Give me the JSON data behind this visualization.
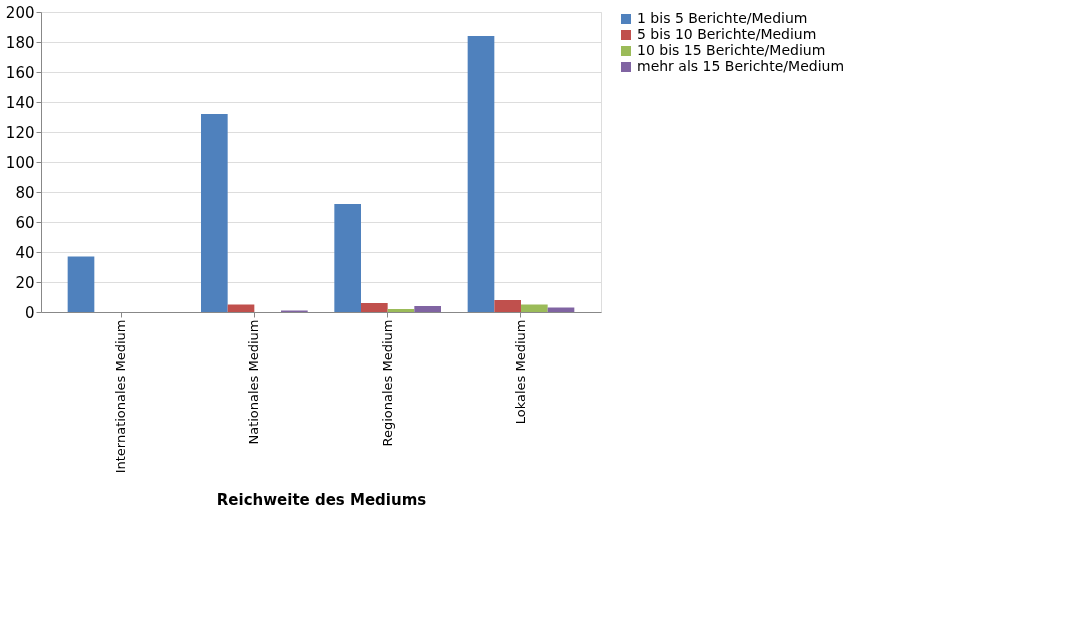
{
  "chart_data": {
    "type": "bar",
    "xlabel": "Reichweite des Mediums",
    "categories": [
      "Internationales Medium",
      "Nationales Medium",
      "Regionales Medium",
      "Lokales Medium"
    ],
    "series": [
      {
        "name": "1 bis 5 Berichte/Medium",
        "color": "#4f81bd",
        "values": [
          37,
          132,
          72,
          184
        ]
      },
      {
        "name": "5 bis 10 Berichte/Medium",
        "color": "#c0504d",
        "values": [
          0,
          5,
          6,
          8
        ]
      },
      {
        "name": "10 bis 15 Berichte/Medium",
        "color": "#9bbb59",
        "values": [
          0,
          0,
          2,
          5
        ]
      },
      {
        "name": "mehr als 15 Berichte/Medium",
        "color": "#8064a2",
        "values": [
          0,
          1,
          4,
          3
        ]
      }
    ],
    "ylim": [
      0,
      200
    ],
    "yticks": [
      0,
      20,
      40,
      60,
      80,
      100,
      120,
      140,
      160,
      180,
      200
    ],
    "grid": "y",
    "legend": "right"
  }
}
